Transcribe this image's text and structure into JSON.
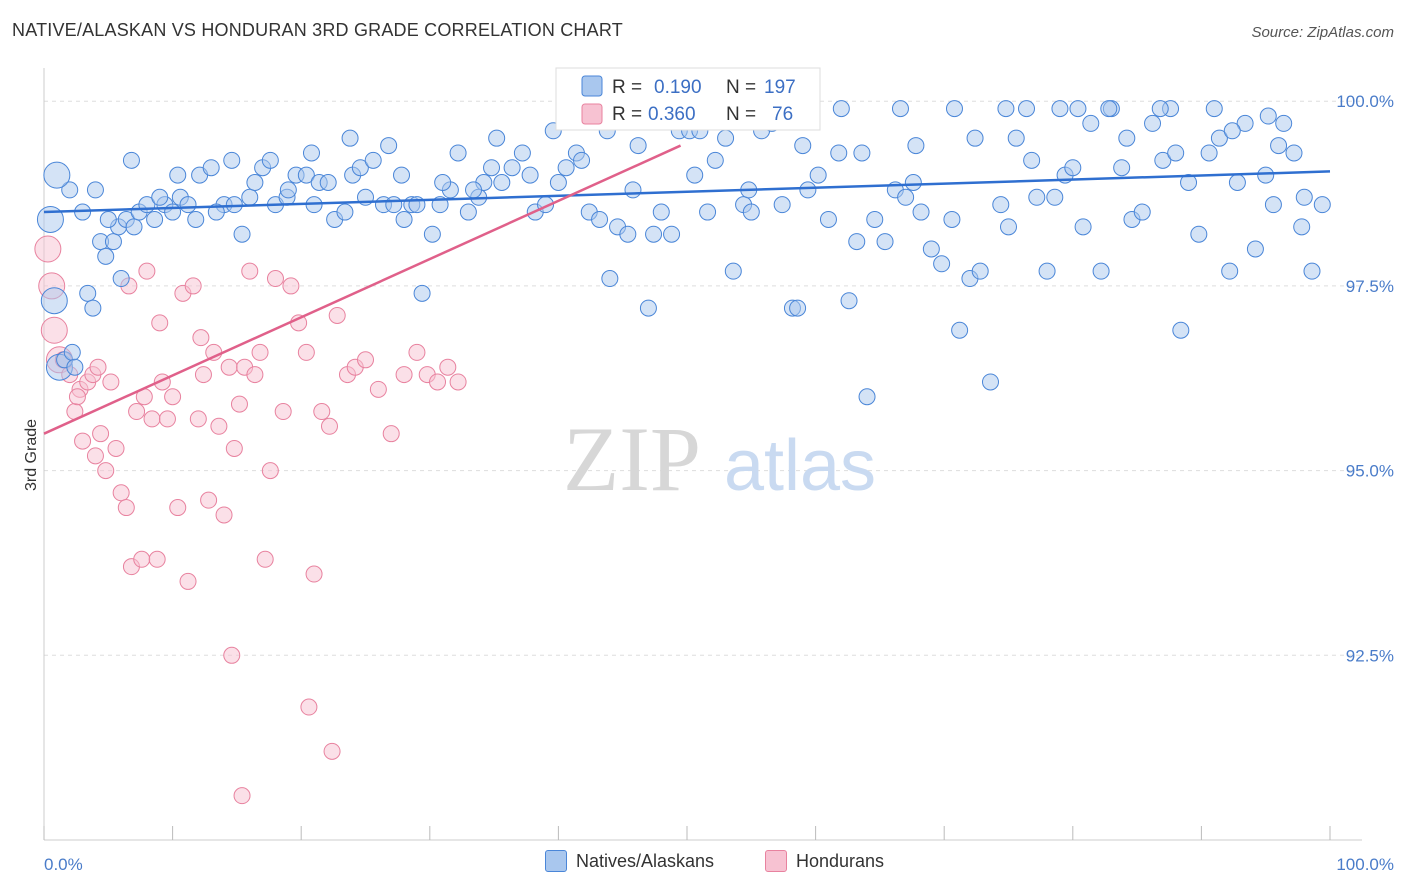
{
  "title": "NATIVE/ALASKAN VS HONDURAN 3RD GRADE CORRELATION CHART",
  "source": "Source: ZipAtlas.com",
  "watermark": {
    "zip": "ZIP",
    "atlas": "atlas"
  },
  "colors": {
    "blue": "#4a86d8",
    "blue_fill": "#a9c7ee",
    "blue_line": "#2f6fd0",
    "pink": "#e8829f",
    "pink_fill": "#f7c2d2",
    "pink_line": "#e0608a",
    "tick_text": "#4a7cc9",
    "grid": "#dddddd"
  },
  "legend_top": {
    "rows": [
      {
        "r_label": "R =",
        "r_value": "0.190",
        "n_label": "N =",
        "n_value": "197",
        "series": "blue"
      },
      {
        "r_label": "R =",
        "r_value": "0.360",
        "n_label": "N =",
        "n_value": "76",
        "series": "pink"
      }
    ]
  },
  "legend_bottom": [
    {
      "label": "Natives/Alaskans",
      "series": "blue"
    },
    {
      "label": "Hondurans",
      "series": "pink"
    }
  ],
  "chart_data": {
    "type": "scatter",
    "title": "NATIVE/ALASKAN VS HONDURAN 3RD GRADE CORRELATION CHART",
    "xlabel": "",
    "ylabel": "3rd Grade",
    "xlim": [
      0,
      100
    ],
    "ylim": [
      90.0,
      100.45
    ],
    "y_ticks": [
      92.5,
      95.0,
      97.5,
      100.0
    ],
    "y_tick_labels": [
      "92.5%",
      "95.0%",
      "97.5%",
      "100.0%"
    ],
    "x_tick_labels": [
      "0.0%",
      "100.0%"
    ],
    "grid": "horizontal dashed",
    "legend_position": "top-center",
    "series": [
      {
        "name": "Natives/Alaskans",
        "color": "#4a86d8",
        "trend": {
          "x": [
            0,
            100
          ],
          "y": [
            98.5,
            99.05
          ]
        },
        "points": [
          [
            0.5,
            98.4
          ],
          [
            0.8,
            97.3
          ],
          [
            1.2,
            96.4
          ],
          [
            1.6,
            96.5
          ],
          [
            2.2,
            96.6
          ],
          [
            2.4,
            96.4
          ],
          [
            3.4,
            97.4
          ],
          [
            3.8,
            97.2
          ],
          [
            4.4,
            98.1
          ],
          [
            4.8,
            97.9
          ],
          [
            5.4,
            98.1
          ],
          [
            5.8,
            98.3
          ],
          [
            6.0,
            97.6
          ],
          [
            6.4,
            98.4
          ],
          [
            7.0,
            98.3
          ],
          [
            7.4,
            98.5
          ],
          [
            8.0,
            98.6
          ],
          [
            8.6,
            98.4
          ],
          [
            9.4,
            98.6
          ],
          [
            10.0,
            98.5
          ],
          [
            10.6,
            98.7
          ],
          [
            11.2,
            98.6
          ],
          [
            12.1,
            99.0
          ],
          [
            13.0,
            99.1
          ],
          [
            14.0,
            98.6
          ],
          [
            14.6,
            99.2
          ],
          [
            15.4,
            98.2
          ],
          [
            16.0,
            98.7
          ],
          [
            17.0,
            99.1
          ],
          [
            18.0,
            98.6
          ],
          [
            18.9,
            98.7
          ],
          [
            19.6,
            99.0
          ],
          [
            20.4,
            99.0
          ],
          [
            21.4,
            98.9
          ],
          [
            22.1,
            98.9
          ],
          [
            22.6,
            98.4
          ],
          [
            23.4,
            98.5
          ],
          [
            24.0,
            99.0
          ],
          [
            24.6,
            99.1
          ],
          [
            25.6,
            99.2
          ],
          [
            26.4,
            98.6
          ],
          [
            27.2,
            98.6
          ],
          [
            28.0,
            98.4
          ],
          [
            28.6,
            98.6
          ],
          [
            29.4,
            97.4
          ],
          [
            30.2,
            98.2
          ],
          [
            30.8,
            98.6
          ],
          [
            31.6,
            98.8
          ],
          [
            32.2,
            99.3
          ],
          [
            33.0,
            98.5
          ],
          [
            33.8,
            98.7
          ],
          [
            34.2,
            98.9
          ],
          [
            34.8,
            99.1
          ],
          [
            35.6,
            98.9
          ],
          [
            36.4,
            99.1
          ],
          [
            37.2,
            99.3
          ],
          [
            38.2,
            98.5
          ],
          [
            39.0,
            98.6
          ],
          [
            40.0,
            98.9
          ],
          [
            40.6,
            99.1
          ],
          [
            41.4,
            99.3
          ],
          [
            42.4,
            98.5
          ],
          [
            43.2,
            98.4
          ],
          [
            44.0,
            97.6
          ],
          [
            44.6,
            98.3
          ],
          [
            45.4,
            98.2
          ],
          [
            46.2,
            99.4
          ],
          [
            47.0,
            97.2
          ],
          [
            47.4,
            98.2
          ],
          [
            48.0,
            98.5
          ],
          [
            48.8,
            98.2
          ],
          [
            49.4,
            99.6
          ],
          [
            50.2,
            99.6
          ],
          [
            51.0,
            99.6
          ],
          [
            51.6,
            98.5
          ],
          [
            52.2,
            99.2
          ],
          [
            53.0,
            99.5
          ],
          [
            53.6,
            97.7
          ],
          [
            54.4,
            98.6
          ],
          [
            55.0,
            98.5
          ],
          [
            55.8,
            99.6
          ],
          [
            56.6,
            99.7
          ],
          [
            57.4,
            98.6
          ],
          [
            58.2,
            97.2
          ],
          [
            58.6,
            97.2
          ],
          [
            59.4,
            98.8
          ],
          [
            60.2,
            99.0
          ],
          [
            61.0,
            98.4
          ],
          [
            61.8,
            99.3
          ],
          [
            62.6,
            97.3
          ],
          [
            63.2,
            98.1
          ],
          [
            64.0,
            96.0
          ],
          [
            64.6,
            98.4
          ],
          [
            65.4,
            98.1
          ],
          [
            66.2,
            98.8
          ],
          [
            67.0,
            98.7
          ],
          [
            67.6,
            98.9
          ],
          [
            68.2,
            98.5
          ],
          [
            69.0,
            98.0
          ],
          [
            69.8,
            97.8
          ],
          [
            70.6,
            98.4
          ],
          [
            71.2,
            96.9
          ],
          [
            72.0,
            97.6
          ],
          [
            72.8,
            97.7
          ],
          [
            73.6,
            96.2
          ],
          [
            74.4,
            98.6
          ],
          [
            75.0,
            98.3
          ],
          [
            75.6,
            99.5
          ],
          [
            76.4,
            99.9
          ],
          [
            77.2,
            98.7
          ],
          [
            78.0,
            97.7
          ],
          [
            78.6,
            98.7
          ],
          [
            79.4,
            99.0
          ],
          [
            80.0,
            99.1
          ],
          [
            80.8,
            98.3
          ],
          [
            81.4,
            99.7
          ],
          [
            82.2,
            97.7
          ],
          [
            83.0,
            99.9
          ],
          [
            83.8,
            99.1
          ],
          [
            84.6,
            98.4
          ],
          [
            85.4,
            98.5
          ],
          [
            86.2,
            99.7
          ],
          [
            87.0,
            99.2
          ],
          [
            87.6,
            99.9
          ],
          [
            88.4,
            96.9
          ],
          [
            89.0,
            98.9
          ],
          [
            89.8,
            98.2
          ],
          [
            90.6,
            99.3
          ],
          [
            91.4,
            99.5
          ],
          [
            92.2,
            97.7
          ],
          [
            92.8,
            98.9
          ],
          [
            93.4,
            99.7
          ],
          [
            94.2,
            98.0
          ],
          [
            95.0,
            99.0
          ],
          [
            95.6,
            98.6
          ],
          [
            96.4,
            99.7
          ],
          [
            97.2,
            99.3
          ],
          [
            97.8,
            98.3
          ],
          [
            98.6,
            97.7
          ],
          [
            99.4,
            98.6
          ],
          [
            2.0,
            98.8
          ],
          [
            5.0,
            98.4
          ],
          [
            9.0,
            98.7
          ],
          [
            13.4,
            98.5
          ],
          [
            17.6,
            99.2
          ],
          [
            21.0,
            98.6
          ],
          [
            25.0,
            98.7
          ],
          [
            29.0,
            98.6
          ],
          [
            33.4,
            98.8
          ],
          [
            37.8,
            99.0
          ],
          [
            41.8,
            99.2
          ],
          [
            45.8,
            98.8
          ],
          [
            50.6,
            99.0
          ],
          [
            54.8,
            98.8
          ],
          [
            59.0,
            99.4
          ],
          [
            63.6,
            99.3
          ],
          [
            67.8,
            99.4
          ],
          [
            72.4,
            99.5
          ],
          [
            76.8,
            99.2
          ],
          [
            80.4,
            99.9
          ],
          [
            84.2,
            99.5
          ],
          [
            88.0,
            99.3
          ],
          [
            92.4,
            99.6
          ],
          [
            96.0,
            99.4
          ],
          [
            4.0,
            98.8
          ],
          [
            11.8,
            98.4
          ],
          [
            16.4,
            98.9
          ],
          [
            20.8,
            99.3
          ],
          [
            26.8,
            99.4
          ],
          [
            31.0,
            98.9
          ],
          [
            35.2,
            99.5
          ],
          [
            39.6,
            99.6
          ],
          [
            43.8,
            99.6
          ],
          [
            48.4,
            99.9
          ],
          [
            53.2,
            99.9
          ],
          [
            57.8,
            99.9
          ],
          [
            62.0,
            99.9
          ],
          [
            66.6,
            99.9
          ],
          [
            70.8,
            99.9
          ],
          [
            74.8,
            99.9
          ],
          [
            79.0,
            99.9
          ],
          [
            82.8,
            99.9
          ],
          [
            86.8,
            99.9
          ],
          [
            91.0,
            99.9
          ],
          [
            95.2,
            99.8
          ],
          [
            98.0,
            98.7
          ],
          [
            1.0,
            99.0
          ],
          [
            3.0,
            98.5
          ],
          [
            6.8,
            99.2
          ],
          [
            10.4,
            99.0
          ],
          [
            14.8,
            98.6
          ],
          [
            19.0,
            98.8
          ],
          [
            23.8,
            99.5
          ],
          [
            27.8,
            99.0
          ]
        ]
      },
      {
        "name": "Hondurans",
        "color": "#e8829f",
        "trend": {
          "x": [
            0,
            49.5
          ],
          "y": [
            95.5,
            99.4
          ]
        },
        "points": [
          [
            0.3,
            98.0
          ],
          [
            0.6,
            97.5
          ],
          [
            0.8,
            96.9
          ],
          [
            1.2,
            96.5
          ],
          [
            1.5,
            96.5
          ],
          [
            2.0,
            96.3
          ],
          [
            2.4,
            95.8
          ],
          [
            2.8,
            96.1
          ],
          [
            3.0,
            95.4
          ],
          [
            3.4,
            96.2
          ],
          [
            3.8,
            96.3
          ],
          [
            4.0,
            95.2
          ],
          [
            4.4,
            95.5
          ],
          [
            4.8,
            95.0
          ],
          [
            5.2,
            96.2
          ],
          [
            5.6,
            95.3
          ],
          [
            6.0,
            94.7
          ],
          [
            6.4,
            94.5
          ],
          [
            6.8,
            93.7
          ],
          [
            7.2,
            95.8
          ],
          [
            7.6,
            93.8
          ],
          [
            8.0,
            97.7
          ],
          [
            8.4,
            95.7
          ],
          [
            8.8,
            93.8
          ],
          [
            9.2,
            96.2
          ],
          [
            9.6,
            95.7
          ],
          [
            10.0,
            96.0
          ],
          [
            10.4,
            94.5
          ],
          [
            10.8,
            97.4
          ],
          [
            11.2,
            93.5
          ],
          [
            11.6,
            97.5
          ],
          [
            12.0,
            95.7
          ],
          [
            12.4,
            96.3
          ],
          [
            12.8,
            94.6
          ],
          [
            13.2,
            96.6
          ],
          [
            13.6,
            95.6
          ],
          [
            14.0,
            94.4
          ],
          [
            14.4,
            96.4
          ],
          [
            14.8,
            95.3
          ],
          [
            15.2,
            95.9
          ],
          [
            15.6,
            96.4
          ],
          [
            16.0,
            97.7
          ],
          [
            16.4,
            96.3
          ],
          [
            16.8,
            96.6
          ],
          [
            17.2,
            93.8
          ],
          [
            17.6,
            95.0
          ],
          [
            18.0,
            97.6
          ],
          [
            18.6,
            95.8
          ],
          [
            19.2,
            97.5
          ],
          [
            19.8,
            97.0
          ],
          [
            20.4,
            96.6
          ],
          [
            21.0,
            93.6
          ],
          [
            21.6,
            95.8
          ],
          [
            22.2,
            95.6
          ],
          [
            22.8,
            97.1
          ],
          [
            23.6,
            96.3
          ],
          [
            24.2,
            96.4
          ],
          [
            25.0,
            96.5
          ],
          [
            26.0,
            96.1
          ],
          [
            27.0,
            95.5
          ],
          [
            28.0,
            96.3
          ],
          [
            29.0,
            96.6
          ],
          [
            29.8,
            96.3
          ],
          [
            30.6,
            96.2
          ],
          [
            31.4,
            96.4
          ],
          [
            32.2,
            96.2
          ],
          [
            4.2,
            96.4
          ],
          [
            6.6,
            97.5
          ],
          [
            9.0,
            97.0
          ],
          [
            12.2,
            96.8
          ],
          [
            14.6,
            92.5
          ],
          [
            20.6,
            91.8
          ],
          [
            22.4,
            91.2
          ],
          [
            15.4,
            90.6
          ],
          [
            2.6,
            96.0
          ],
          [
            7.8,
            96.0
          ]
        ]
      }
    ]
  }
}
